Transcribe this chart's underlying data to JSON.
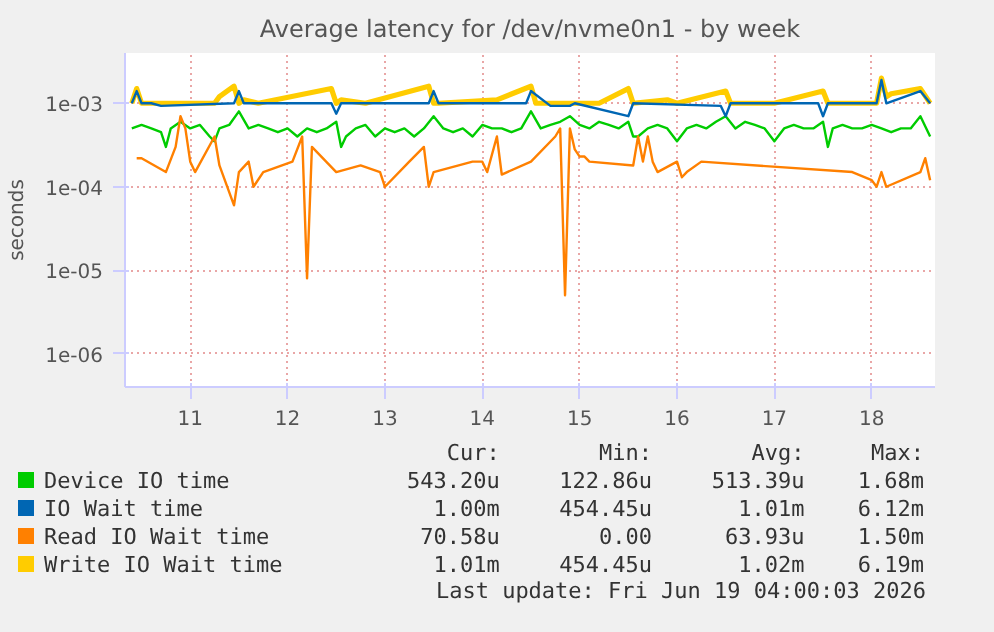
{
  "chart_data": {
    "type": "line",
    "title": "Average latency for /dev/nvme0n1 - by week",
    "ylabel": "seconds",
    "log": true,
    "grid": true,
    "legend": "bottom",
    "xlim": [
      10.33,
      18.65
    ],
    "xticks": [
      11,
      12,
      13,
      14,
      15,
      16,
      17,
      18
    ],
    "ylim": [
      4e-07,
      0.004
    ],
    "yticks": [
      {
        "value": 1e-06,
        "label": "1e-06"
      },
      {
        "value": 1e-05,
        "label": "1e-05"
      },
      {
        "value": 0.0001,
        "label": "1e-04"
      },
      {
        "value": 0.001,
        "label": "1e-03"
      }
    ],
    "series": [
      {
        "name": "Device IO time",
        "color": "#00cc00",
        "x": [
          10.4,
          10.5,
          10.6,
          10.7,
          10.75,
          10.8,
          10.9,
          11.0,
          11.1,
          11.2,
          11.25,
          11.3,
          11.4,
          11.5,
          11.6,
          11.7,
          11.8,
          11.9,
          12.0,
          12.1,
          12.2,
          12.3,
          12.4,
          12.5,
          12.55,
          12.6,
          12.7,
          12.8,
          12.9,
          13.0,
          13.1,
          13.2,
          13.3,
          13.4,
          13.5,
          13.6,
          13.7,
          13.8,
          13.9,
          14.0,
          14.1,
          14.2,
          14.3,
          14.4,
          14.5,
          14.6,
          14.7,
          14.8,
          14.9,
          15.0,
          15.1,
          15.2,
          15.3,
          15.4,
          15.5,
          15.55,
          15.6,
          15.7,
          15.8,
          15.9,
          16.0,
          16.1,
          16.2,
          16.3,
          16.4,
          16.5,
          16.6,
          16.7,
          16.8,
          16.9,
          17.0,
          17.1,
          17.2,
          17.3,
          17.4,
          17.5,
          17.55,
          17.6,
          17.7,
          17.8,
          17.9,
          18.0,
          18.1,
          18.2,
          18.3,
          18.4,
          18.5,
          18.6
        ],
        "values": [
          0.0005,
          0.00055,
          0.0005,
          0.00045,
          0.0003,
          0.0005,
          0.0006,
          0.0005,
          0.00055,
          0.0004,
          0.00035,
          0.0005,
          0.00055,
          0.0008,
          0.0005,
          0.00055,
          0.0005,
          0.00045,
          0.0005,
          0.0004,
          0.0005,
          0.00045,
          0.0005,
          0.0006,
          0.0003,
          0.0004,
          0.0005,
          0.00055,
          0.0004,
          0.0005,
          0.00045,
          0.0005,
          0.0004,
          0.0005,
          0.0007,
          0.0005,
          0.00045,
          0.0005,
          0.0004,
          0.00055,
          0.0005,
          0.0005,
          0.00045,
          0.0005,
          0.0008,
          0.0005,
          0.00055,
          0.0006,
          0.0007,
          0.00055,
          0.0005,
          0.0006,
          0.00055,
          0.0005,
          0.0006,
          0.0004,
          0.0004,
          0.0005,
          0.00055,
          0.0005,
          0.00035,
          0.0005,
          0.00055,
          0.0005,
          0.0006,
          0.0007,
          0.0005,
          0.0006,
          0.00055,
          0.0005,
          0.00035,
          0.0005,
          0.00055,
          0.0005,
          0.0005,
          0.0006,
          0.0003,
          0.0005,
          0.00055,
          0.0005,
          0.0005,
          0.00055,
          0.0005,
          0.00045,
          0.0005,
          0.0005,
          0.0007,
          0.0004
        ]
      },
      {
        "name": "IO Wait time",
        "color": "#0066b3",
        "values": [
          0.001,
          0.0014,
          0.001,
          0.001,
          0.00093,
          0.001,
          0.0014,
          0.001,
          0.001,
          0.00075,
          0.001,
          0.001,
          0.0014,
          0.001,
          0.001,
          0.0014,
          0.00093,
          0.00093,
          0.00093,
          0.001,
          0.0007,
          0.001,
          0.00093,
          0.0007,
          0.001,
          0.001,
          0.0007,
          0.001,
          0.001,
          0.0019,
          0.001,
          0.0014,
          0.001
        ],
        "x": [
          10.4,
          10.45,
          10.5,
          10.6,
          10.7,
          11.45,
          11.5,
          11.55,
          12.45,
          12.5,
          12.55,
          13.45,
          13.5,
          13.55,
          14.45,
          14.5,
          14.7,
          14.8,
          14.9,
          14.95,
          15.5,
          15.55,
          16.45,
          16.5,
          16.55,
          17.45,
          17.5,
          17.55,
          18.05,
          18.1,
          18.15,
          18.5,
          18.6
        ]
      },
      {
        "name": "Read IO Wait time",
        "color": "#ff8000",
        "x": [
          10.45,
          10.5,
          10.75,
          10.85,
          10.9,
          10.95,
          11.0,
          11.05,
          11.25,
          11.3,
          11.45,
          11.5,
          11.6,
          11.65,
          11.75,
          12.05,
          12.15,
          12.2,
          12.25,
          12.5,
          12.75,
          12.95,
          13.0,
          13.25,
          13.4,
          13.45,
          13.5,
          13.9,
          14.0,
          14.05,
          14.15,
          14.2,
          14.5,
          14.75,
          14.8,
          14.85,
          14.9,
          14.95,
          15.0,
          15.05,
          15.1,
          15.55,
          15.6,
          15.65,
          15.7,
          15.75,
          15.8,
          16.0,
          16.05,
          16.1,
          16.25,
          17.8,
          18.0,
          18.05,
          18.1,
          18.15,
          18.5,
          18.55,
          18.6
        ],
        "values": [
          0.00022,
          0.00022,
          0.00015,
          0.0003,
          0.0007,
          0.0005,
          0.0002,
          0.00015,
          0.0004,
          0.00018,
          6e-05,
          0.00015,
          0.0002,
          0.0001,
          0.00015,
          0.0002,
          0.0004,
          8e-06,
          0.0003,
          0.00015,
          0.00018,
          0.00015,
          0.0001,
          0.0002,
          0.0003,
          0.0001,
          0.00015,
          0.0002,
          0.0002,
          0.00015,
          0.0004,
          0.00014,
          0.0002,
          0.0004,
          0.0005,
          5e-06,
          0.0005,
          0.00028,
          0.00023,
          0.00023,
          0.0002,
          0.00018,
          0.0004,
          0.0002,
          0.0004,
          0.0002,
          0.00015,
          0.0002,
          0.00013,
          0.00015,
          0.0002,
          0.00015,
          0.00012,
          0.0001,
          0.00015,
          0.0001,
          0.00015,
          0.00022,
          0.00012
        ]
      },
      {
        "name": "Write IO Wait time",
        "color": "#ffcc00",
        "x": [
          10.4,
          10.45,
          10.5,
          10.6,
          10.7,
          11.25,
          11.3,
          11.45,
          11.5,
          11.55,
          11.7,
          12.45,
          12.5,
          12.55,
          12.8,
          13.45,
          13.5,
          13.55,
          14.15,
          14.5,
          14.55,
          15.0,
          15.2,
          15.5,
          15.55,
          15.9,
          16.0,
          16.5,
          16.55,
          17.0,
          17.5,
          17.55,
          18.05,
          18.1,
          18.15,
          18.2,
          18.5,
          18.6
        ],
        "values": [
          0.001,
          0.0015,
          0.001,
          0.001,
          0.001,
          0.001,
          0.0012,
          0.0016,
          0.001,
          0.0011,
          0.001,
          0.0015,
          0.001,
          0.0011,
          0.001,
          0.0016,
          0.001,
          0.001,
          0.0011,
          0.0016,
          0.001,
          0.001,
          0.001,
          0.0015,
          0.001,
          0.0011,
          0.001,
          0.0014,
          0.001,
          0.001,
          0.0014,
          0.001,
          0.001,
          0.002,
          0.0012,
          0.0013,
          0.0015,
          0.001
        ]
      }
    ],
    "annotations": [
      "Cur:",
      "Min:",
      "Avg:",
      "Max:",
      "543.20u",
      "122.86u",
      "513.39u",
      "1.68m",
      "1.00m",
      "454.45u",
      "1.01m",
      "6.12m",
      "70.58u",
      "0.00",
      "63.93u",
      "1.50m",
      "1.01m",
      "454.45u",
      "1.02m",
      "6.19m",
      "Last update: Fri Jun 19 04:00:03 2026"
    ]
  }
}
